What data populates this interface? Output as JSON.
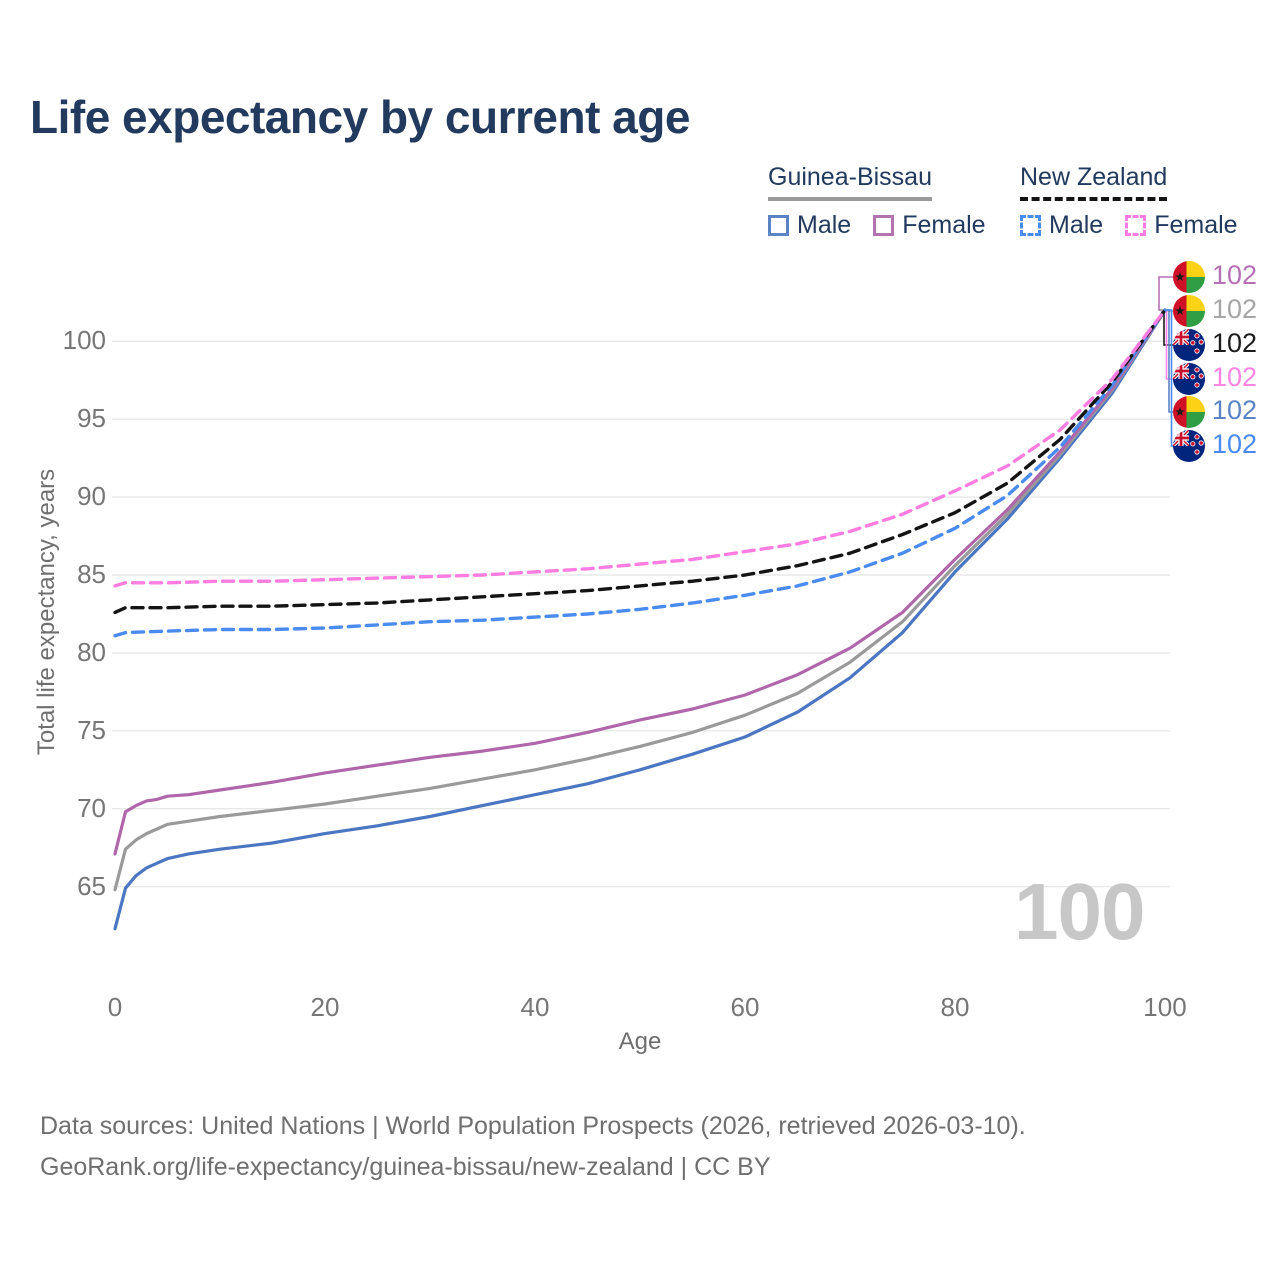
{
  "title": "Life expectancy by current age",
  "legend": {
    "guinea_bissau": {
      "label": "Guinea-Bissau",
      "male": "Male",
      "female": "Female"
    },
    "new_zealand": {
      "label": "New Zealand",
      "male": "Male",
      "female": "Female"
    }
  },
  "age_indicator": "100",
  "footer": {
    "line1": "Data sources: United Nations | World Population Prospects (2026, retrieved 2026-03-10).",
    "line2": "GeoRank.org/life-expectancy/guinea-bissau/new-zealand | CC BY"
  },
  "chart_data": {
    "type": "line",
    "title": "Life expectancy by current age",
    "xlabel": "Age",
    "ylabel": "Total life expectancy, years",
    "xlim": [
      0,
      100
    ],
    "ylim": [
      62,
      103
    ],
    "x_ticks": [
      0,
      20,
      40,
      60,
      80,
      100
    ],
    "y_ticks": [
      65,
      70,
      75,
      80,
      85,
      90,
      95,
      100
    ],
    "grid": "horizontal",
    "legend_position": "top-right",
    "series": [
      {
        "name": "Guinea-Bissau Male",
        "style": "solid",
        "color": "#4a76c2",
        "points": [
          [
            0,
            62.3
          ],
          [
            1,
            64.9
          ],
          [
            2,
            65.7
          ],
          [
            3,
            66.2
          ],
          [
            4,
            66.5
          ],
          [
            5,
            66.8
          ],
          [
            7,
            67.1
          ],
          [
            10,
            67.4
          ],
          [
            15,
            67.8
          ],
          [
            20,
            68.4
          ],
          [
            25,
            68.9
          ],
          [
            30,
            69.5
          ],
          [
            35,
            70.2
          ],
          [
            40,
            70.9
          ],
          [
            45,
            71.6
          ],
          [
            50,
            72.5
          ],
          [
            55,
            73.5
          ],
          [
            60,
            74.6
          ],
          [
            65,
            76.2
          ],
          [
            70,
            78.4
          ],
          [
            75,
            81.3
          ],
          [
            80,
            85.2
          ],
          [
            85,
            88.6
          ],
          [
            90,
            92.5
          ],
          [
            95,
            96.7
          ],
          [
            100,
            102
          ]
        ]
      },
      {
        "name": "Guinea-Bissau All",
        "style": "solid",
        "color": "#9a9a9a",
        "points": [
          [
            0,
            64.8
          ],
          [
            1,
            67.4
          ],
          [
            2,
            68.0
          ],
          [
            3,
            68.4
          ],
          [
            4,
            68.7
          ],
          [
            5,
            69.0
          ],
          [
            7,
            69.2
          ],
          [
            10,
            69.5
          ],
          [
            15,
            69.9
          ],
          [
            20,
            70.3
          ],
          [
            25,
            70.8
          ],
          [
            30,
            71.3
          ],
          [
            35,
            71.9
          ],
          [
            40,
            72.5
          ],
          [
            45,
            73.2
          ],
          [
            50,
            74.0
          ],
          [
            55,
            74.9
          ],
          [
            60,
            76.0
          ],
          [
            65,
            77.4
          ],
          [
            70,
            79.4
          ],
          [
            75,
            82.0
          ],
          [
            80,
            85.6
          ],
          [
            85,
            88.9
          ],
          [
            90,
            92.7
          ],
          [
            95,
            96.9
          ],
          [
            100,
            102
          ]
        ]
      },
      {
        "name": "Guinea-Bissau Female",
        "style": "solid",
        "color": "#b066ab",
        "points": [
          [
            0,
            67.1
          ],
          [
            1,
            69.8
          ],
          [
            2,
            70.2
          ],
          [
            3,
            70.5
          ],
          [
            4,
            70.6
          ],
          [
            5,
            70.8
          ],
          [
            7,
            70.9
          ],
          [
            10,
            71.2
          ],
          [
            12,
            71.4
          ],
          [
            15,
            71.7
          ],
          [
            20,
            72.3
          ],
          [
            25,
            72.8
          ],
          [
            30,
            73.3
          ],
          [
            35,
            73.7
          ],
          [
            40,
            74.2
          ],
          [
            45,
            74.9
          ],
          [
            50,
            75.7
          ],
          [
            55,
            76.4
          ],
          [
            60,
            77.3
          ],
          [
            65,
            78.6
          ],
          [
            70,
            80.3
          ],
          [
            75,
            82.6
          ],
          [
            80,
            86.0
          ],
          [
            85,
            89.2
          ],
          [
            90,
            92.9
          ],
          [
            95,
            97.0
          ],
          [
            100,
            102
          ]
        ]
      },
      {
        "name": "New Zealand Male",
        "style": "dashed",
        "color": "#4a8bf0",
        "points": [
          [
            0,
            81.1
          ],
          [
            1,
            81.3
          ],
          [
            5,
            81.4
          ],
          [
            10,
            81.5
          ],
          [
            15,
            81.5
          ],
          [
            20,
            81.6
          ],
          [
            25,
            81.8
          ],
          [
            30,
            82.0
          ],
          [
            35,
            82.1
          ],
          [
            40,
            82.3
          ],
          [
            45,
            82.5
          ],
          [
            50,
            82.8
          ],
          [
            55,
            83.2
          ],
          [
            60,
            83.7
          ],
          [
            65,
            84.3
          ],
          [
            70,
            85.2
          ],
          [
            75,
            86.4
          ],
          [
            80,
            88.0
          ],
          [
            85,
            90.1
          ],
          [
            90,
            93.2
          ],
          [
            95,
            97.2
          ],
          [
            100,
            102
          ]
        ]
      },
      {
        "name": "New Zealand All",
        "style": "dashed",
        "color": "#141414",
        "points": [
          [
            0,
            82.6
          ],
          [
            1,
            82.9
          ],
          [
            5,
            82.9
          ],
          [
            10,
            83.0
          ],
          [
            15,
            83.0
          ],
          [
            20,
            83.1
          ],
          [
            25,
            83.2
          ],
          [
            30,
            83.4
          ],
          [
            35,
            83.6
          ],
          [
            40,
            83.8
          ],
          [
            45,
            84.0
          ],
          [
            50,
            84.3
          ],
          [
            55,
            84.6
          ],
          [
            60,
            85.0
          ],
          [
            65,
            85.6
          ],
          [
            70,
            86.4
          ],
          [
            75,
            87.6
          ],
          [
            80,
            89.0
          ],
          [
            85,
            90.9
          ],
          [
            90,
            93.7
          ],
          [
            95,
            97.4
          ],
          [
            100,
            102
          ]
        ]
      },
      {
        "name": "New Zealand Female",
        "style": "dashed",
        "color": "#ff7ce0",
        "points": [
          [
            0,
            84.3
          ],
          [
            1,
            84.5
          ],
          [
            5,
            84.5
          ],
          [
            10,
            84.6
          ],
          [
            15,
            84.6
          ],
          [
            20,
            84.7
          ],
          [
            25,
            84.8
          ],
          [
            30,
            84.9
          ],
          [
            35,
            85.0
          ],
          [
            40,
            85.2
          ],
          [
            45,
            85.4
          ],
          [
            50,
            85.7
          ],
          [
            55,
            86.0
          ],
          [
            60,
            86.5
          ],
          [
            65,
            87.0
          ],
          [
            70,
            87.8
          ],
          [
            75,
            88.9
          ],
          [
            80,
            90.4
          ],
          [
            85,
            92.0
          ],
          [
            90,
            94.3
          ],
          [
            95,
            97.6
          ],
          [
            100,
            102
          ]
        ]
      }
    ],
    "end_labels": [
      {
        "value": "102",
        "series": "Guinea-Bissau Female",
        "flag": "guinea-bissau",
        "color": "#b671b6"
      },
      {
        "value": "102",
        "series": "Guinea-Bissau All",
        "flag": "guinea-bissau",
        "color": "#a6a6a6"
      },
      {
        "value": "102",
        "series": "New Zealand All",
        "flag": "new-zealand",
        "color": "#1c1c1c"
      },
      {
        "value": "102",
        "series": "New Zealand Female",
        "flag": "new-zealand",
        "color": "#ff85e3"
      },
      {
        "value": "102",
        "series": "Guinea-Bissau Male",
        "flag": "guinea-bissau",
        "color": "#5b84c4"
      },
      {
        "value": "102",
        "series": "New Zealand Male",
        "flag": "new-zealand",
        "color": "#4a8bf0"
      }
    ]
  }
}
